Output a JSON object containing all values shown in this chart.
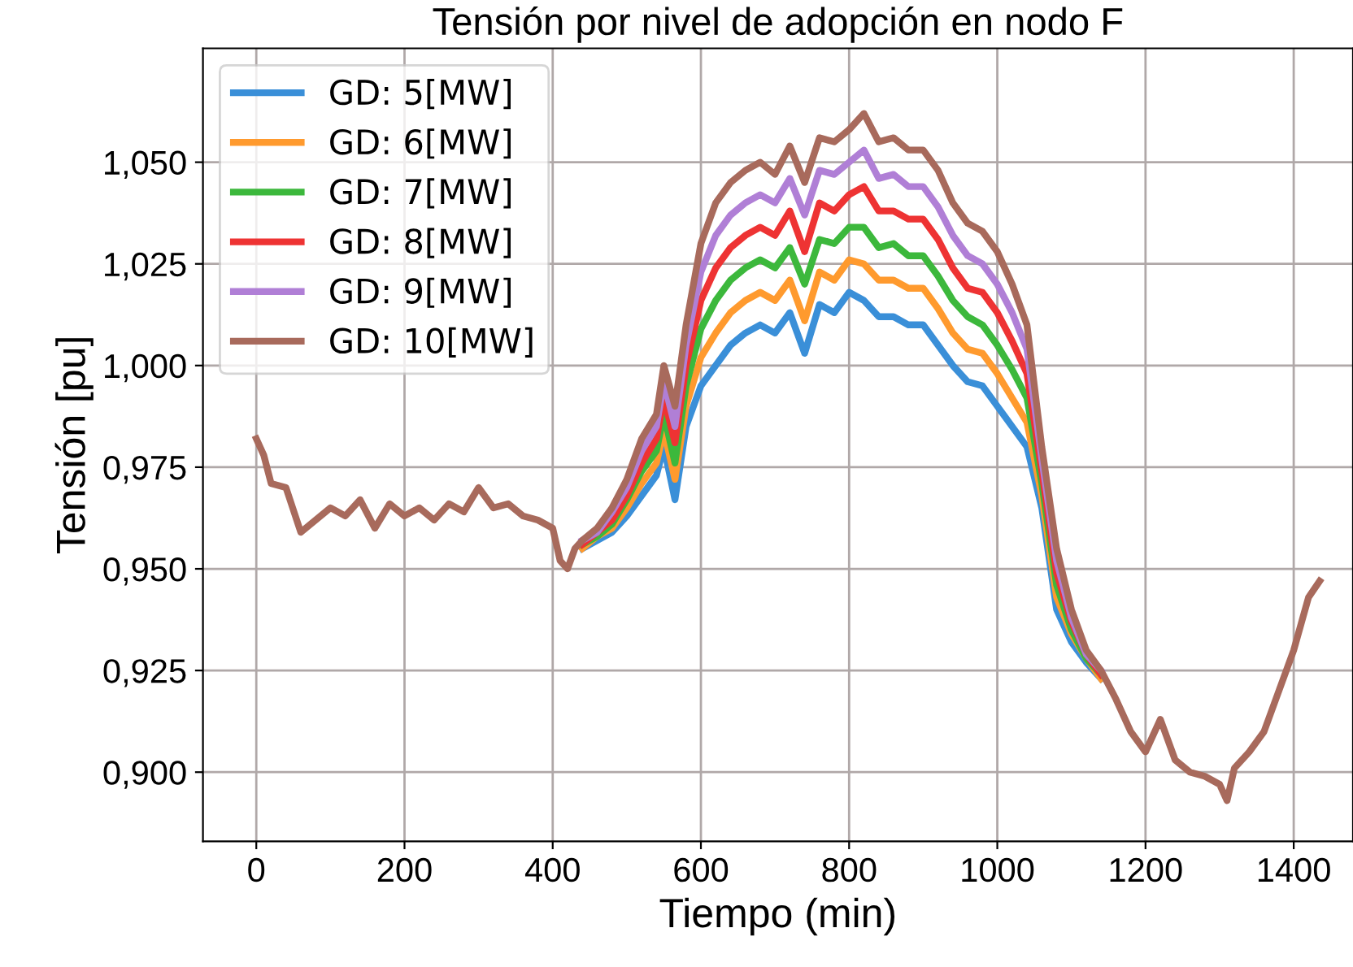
{
  "chart_data": {
    "type": "line",
    "title": "Tensión por nivel de adopción en nodo F",
    "xlabel": "Tiempo (min)",
    "ylabel": "Tensión [pu]",
    "x": [
      0,
      10,
      20,
      40,
      60,
      80,
      100,
      120,
      140,
      160,
      180,
      200,
      220,
      240,
      260,
      280,
      300,
      320,
      340,
      360,
      380,
      400,
      410,
      420,
      430,
      440,
      460,
      480,
      500,
      520,
      540,
      550,
      565,
      580,
      600,
      620,
      640,
      660,
      680,
      700,
      720,
      740,
      760,
      780,
      800,
      820,
      840,
      860,
      880,
      900,
      920,
      940,
      960,
      980,
      1000,
      1020,
      1040,
      1060,
      1080,
      1100,
      1120,
      1140,
      1160,
      1180,
      1200,
      1220,
      1240,
      1260,
      1280,
      1300,
      1310,
      1320,
      1340,
      1360,
      1380,
      1400,
      1420,
      1435
    ],
    "series": [
      {
        "name": "GD: 5[MW]",
        "color": "#3a8fd8",
        "values": [
          null,
          null,
          null,
          null,
          null,
          null,
          null,
          null,
          null,
          null,
          null,
          null,
          null,
          null,
          null,
          null,
          null,
          null,
          null,
          null,
          null,
          null,
          null,
          null,
          null,
          0.955,
          0.957,
          0.959,
          0.963,
          0.968,
          0.973,
          0.98,
          0.967,
          0.985,
          0.995,
          1.0,
          1.005,
          1.008,
          1.01,
          1.008,
          1.013,
          1.003,
          1.015,
          1.013,
          1.018,
          1.016,
          1.012,
          1.012,
          1.01,
          1.01,
          1.005,
          1.0,
          0.996,
          0.995,
          0.99,
          0.985,
          0.98,
          0.965,
          0.94,
          0.932,
          0.927,
          0.923,
          null,
          null,
          null,
          null,
          null,
          null,
          null,
          null,
          null,
          null,
          null,
          null,
          null,
          null,
          null,
          null
        ]
      },
      {
        "name": "GD: 6[MW]",
        "color": "#ff9a2e",
        "values": [
          null,
          null,
          null,
          null,
          null,
          null,
          null,
          null,
          null,
          null,
          null,
          null,
          null,
          null,
          null,
          null,
          null,
          null,
          null,
          null,
          null,
          null,
          null,
          null,
          null,
          0.955,
          0.958,
          0.96,
          0.965,
          0.971,
          0.976,
          0.984,
          0.972,
          0.99,
          1.002,
          1.008,
          1.013,
          1.016,
          1.018,
          1.016,
          1.021,
          1.011,
          1.023,
          1.021,
          1.026,
          1.025,
          1.021,
          1.021,
          1.019,
          1.019,
          1.014,
          1.008,
          1.004,
          1.003,
          0.998,
          0.992,
          0.986,
          0.968,
          0.943,
          0.934,
          0.928,
          0.923,
          null,
          null,
          null,
          null,
          null,
          null,
          null,
          null,
          null,
          null,
          null,
          null,
          null,
          null,
          null,
          null
        ]
      },
      {
        "name": "GD: 7[MW]",
        "color": "#3cb83c",
        "values": [
          null,
          null,
          null,
          null,
          null,
          null,
          null,
          null,
          null,
          null,
          null,
          null,
          null,
          null,
          null,
          null,
          null,
          null,
          null,
          null,
          null,
          null,
          null,
          null,
          null,
          0.956,
          0.958,
          0.961,
          0.967,
          0.974,
          0.979,
          0.988,
          0.976,
          0.995,
          1.009,
          1.016,
          1.021,
          1.024,
          1.026,
          1.024,
          1.029,
          1.02,
          1.031,
          1.03,
          1.034,
          1.034,
          1.029,
          1.03,
          1.027,
          1.027,
          1.022,
          1.016,
          1.012,
          1.01,
          1.005,
          0.999,
          0.992,
          0.971,
          0.946,
          0.935,
          0.928,
          0.924,
          null,
          null,
          null,
          null,
          null,
          null,
          null,
          null,
          null,
          null,
          null,
          null,
          null,
          null,
          null,
          null
        ]
      },
      {
        "name": "GD: 8[MW]",
        "color": "#ee3333",
        "values": [
          null,
          null,
          null,
          null,
          null,
          null,
          null,
          null,
          null,
          null,
          null,
          null,
          null,
          null,
          null,
          null,
          null,
          null,
          null,
          null,
          null,
          null,
          null,
          null,
          null,
          0.956,
          0.959,
          0.962,
          0.968,
          0.976,
          0.982,
          0.992,
          0.981,
          1.0,
          1.016,
          1.024,
          1.029,
          1.032,
          1.034,
          1.032,
          1.038,
          1.028,
          1.04,
          1.038,
          1.042,
          1.044,
          1.038,
          1.038,
          1.036,
          1.036,
          1.031,
          1.024,
          1.019,
          1.018,
          1.013,
          1.006,
          0.998,
          0.974,
          0.949,
          0.937,
          0.929,
          0.924,
          null,
          null,
          null,
          null,
          null,
          null,
          null,
          null,
          null,
          null,
          null,
          null,
          null,
          null,
          null,
          null
        ]
      },
      {
        "name": "GD: 9[MW]",
        "color": "#b07fd6",
        "values": [
          null,
          null,
          null,
          null,
          null,
          null,
          null,
          null,
          null,
          null,
          null,
          null,
          null,
          null,
          null,
          null,
          null,
          null,
          null,
          null,
          null,
          null,
          null,
          null,
          null,
          0.957,
          0.959,
          0.964,
          0.97,
          0.979,
          0.985,
          0.996,
          0.985,
          1.005,
          1.023,
          1.032,
          1.037,
          1.04,
          1.042,
          1.04,
          1.046,
          1.037,
          1.048,
          1.047,
          1.05,
          1.053,
          1.046,
          1.047,
          1.044,
          1.044,
          1.039,
          1.032,
          1.027,
          1.025,
          1.02,
          1.013,
          1.004,
          0.977,
          0.952,
          0.938,
          0.929,
          0.925,
          null,
          null,
          null,
          null,
          null,
          null,
          null,
          null,
          null,
          null,
          null,
          null,
          null,
          null,
          null,
          null
        ]
      },
      {
        "name": "GD: 10[MW]",
        "color": "#a86a5c",
        "values": [
          0.982,
          0.978,
          0.971,
          0.97,
          0.959,
          0.962,
          0.965,
          0.963,
          0.967,
          0.96,
          0.966,
          0.963,
          0.965,
          0.962,
          0.966,
          0.964,
          0.97,
          0.965,
          0.966,
          0.963,
          0.962,
          0.96,
          0.952,
          0.95,
          0.955,
          0.957,
          0.96,
          0.965,
          0.972,
          0.982,
          0.988,
          1.0,
          0.99,
          1.01,
          1.03,
          1.04,
          1.045,
          1.048,
          1.05,
          1.047,
          1.054,
          1.045,
          1.056,
          1.055,
          1.058,
          1.062,
          1.055,
          1.056,
          1.053,
          1.053,
          1.048,
          1.04,
          1.035,
          1.033,
          1.028,
          1.02,
          1.01,
          0.98,
          0.955,
          0.94,
          0.93,
          0.925,
          0.918,
          0.91,
          0.905,
          0.913,
          0.903,
          0.9,
          0.899,
          0.897,
          0.893,
          0.901,
          0.905,
          0.91,
          0.92,
          0.93,
          0.943,
          0.947
        ]
      }
    ],
    "xlim": [
      -72,
      1480
    ],
    "ylim": [
      0.883,
      1.078
    ],
    "xticks": [
      0,
      200,
      400,
      600,
      800,
      1000,
      1200,
      1400
    ],
    "yticks": [
      {
        "value": 0.9,
        "label": "0,900"
      },
      {
        "value": 0.925,
        "label": "0,925"
      },
      {
        "value": 0.95,
        "label": "0,950"
      },
      {
        "value": 0.975,
        "label": "0,975"
      },
      {
        "value": 1.0,
        "label": "1,000"
      },
      {
        "value": 1.025,
        "label": "1,025"
      },
      {
        "value": 1.05,
        "label": "1,050"
      }
    ],
    "grid": true,
    "legend": "top left",
    "marker": "none",
    "line_style": "solid"
  }
}
